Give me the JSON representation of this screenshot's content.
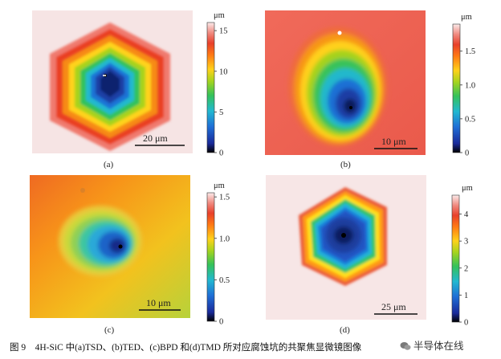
{
  "panels": [
    {
      "id": "a",
      "label": "(a)",
      "scale_bar": "20 μm",
      "unit": "μm",
      "colorbar_ticks": [
        "15",
        "10",
        "5",
        "0"
      ],
      "colorbar_values": [
        15,
        10,
        5,
        0
      ],
      "colorbar_max": 16
    },
    {
      "id": "b",
      "label": "(b)",
      "scale_bar": "10 μm",
      "unit": "μm",
      "colorbar_ticks": [
        "1.5",
        "1.0",
        "0.5",
        "0"
      ],
      "colorbar_values": [
        1.5,
        1.0,
        0.5,
        0
      ],
      "colorbar_max": 1.9
    },
    {
      "id": "c",
      "label": "(c)",
      "scale_bar": "10 μm",
      "unit": "μm",
      "colorbar_ticks": [
        "1.5",
        "1.0",
        "0.5",
        "0"
      ],
      "colorbar_values": [
        1.5,
        1.0,
        0.5,
        0
      ],
      "colorbar_max": 1.55
    },
    {
      "id": "d",
      "label": "(d)",
      "scale_bar": "25 μm",
      "unit": "μm",
      "colorbar_ticks": [
        "4",
        "3",
        "2",
        "1",
        "0"
      ],
      "colorbar_values": [
        4,
        3,
        2,
        1,
        0
      ],
      "colorbar_max": 4.7
    }
  ],
  "caption": "图 9　4H-SiC 中(a)TSD、(b)TED、(c)BPD 和(d)TMD 所对应腐蚀坑的共聚焦显微镜图像",
  "watermark": "半导体在线"
}
